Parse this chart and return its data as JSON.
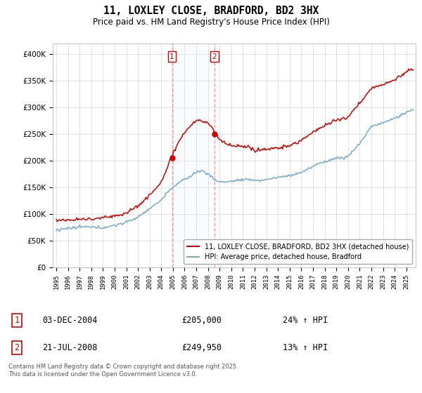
{
  "title": "11, LOXLEY CLOSE, BRADFORD, BD2 3HX",
  "subtitle": "Price paid vs. HM Land Registry's House Price Index (HPI)",
  "ylim": [
    0,
    420000
  ],
  "yticks": [
    0,
    50000,
    100000,
    150000,
    200000,
    250000,
    300000,
    350000,
    400000
  ],
  "ytick_labels": [
    "£0",
    "£50K",
    "£100K",
    "£150K",
    "£200K",
    "£250K",
    "£300K",
    "£350K",
    "£400K"
  ],
  "sale1_date": "03-DEC-2004",
  "sale1_price": 205000,
  "sale1_price_str": "£205,000",
  "sale1_hpi": "24% ↑ HPI",
  "sale1_x": 2004.92,
  "sale2_date": "21-JUL-2008",
  "sale2_price": 249950,
  "sale2_price_str": "£249,950",
  "sale2_hpi": "13% ↑ HPI",
  "sale2_x": 2008.54,
  "legend_house": "11, LOXLEY CLOSE, BRADFORD, BD2 3HX (detached house)",
  "legend_hpi": "HPI: Average price, detached house, Bradford",
  "footnote": "Contains HM Land Registry data © Crown copyright and database right 2025.\nThis data is licensed under the Open Government Licence v3.0.",
  "house_color": "#cc0000",
  "hpi_color": "#7aaac8",
  "vline_color": "#ff9999",
  "shade_color": "#ddeeff",
  "background_color": "#ffffff",
  "grid_color": "#cccccc",
  "xlim_start": 1994.7,
  "xlim_end": 2025.8
}
